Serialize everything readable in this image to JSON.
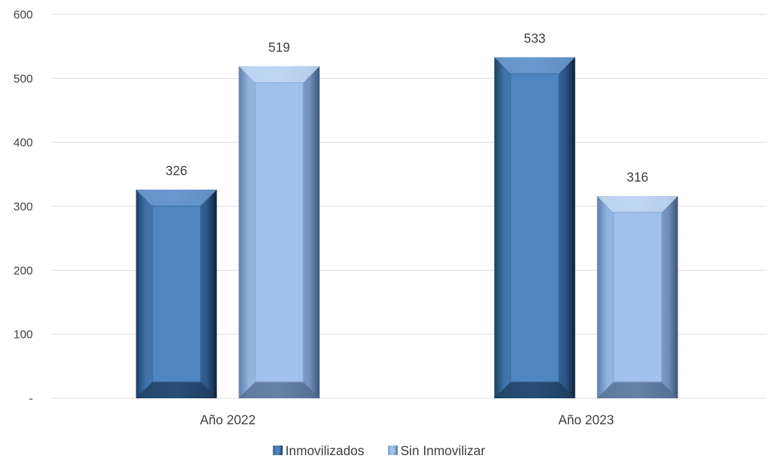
{
  "chart_data": {
    "type": "bar",
    "title": "",
    "xlabel": "",
    "ylabel": "",
    "categories": [
      "Año 2022",
      "Año 2023"
    ],
    "series": [
      {
        "name": "Inmovilizados",
        "values": [
          326,
          533
        ],
        "color": "#4f86c0"
      },
      {
        "name": "Sin Inmovilizar",
        "values": [
          519,
          316
        ],
        "color": "#9fc1ec"
      }
    ],
    "ylim": [
      0,
      600
    ],
    "yticks": [
      0,
      100,
      200,
      300,
      400,
      500,
      600
    ],
    "ytick_labels": [
      "-",
      "100",
      "200",
      "300",
      "400",
      "500",
      "600"
    ],
    "grid": true,
    "legend_position": "bottom"
  }
}
